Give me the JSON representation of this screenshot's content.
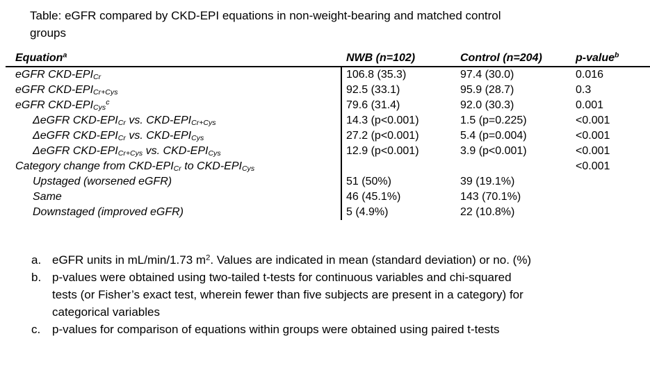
{
  "title": "Table: eGFR compared by CKD-EPI equations in non-weight-bearing and matched control groups",
  "table": {
    "columns": {
      "equation": [
        {
          "t": "Equation"
        },
        {
          "t": "a",
          "s": "sup"
        }
      ],
      "nwb": "NWB (n=102)",
      "control": "Control (n=204)",
      "p_value": [
        {
          "t": "p-value"
        },
        {
          "t": "b",
          "s": "sup"
        }
      ]
    },
    "rows": [
      {
        "equation": [
          {
            "t": "eGFR CKD-EPI"
          },
          {
            "t": "Cr",
            "s": "sub"
          }
        ],
        "nwb": "106.8 (35.3)",
        "control": "97.4 (30.0)",
        "p": "0.016"
      },
      {
        "equation": [
          {
            "t": "eGFR CKD-EPI"
          },
          {
            "t": "Cr+Cys",
            "s": "sub"
          }
        ],
        "nwb": "92.5 (33.1)",
        "control": "95.9 (28.7)",
        "p": "0.3"
      },
      {
        "equation": [
          {
            "t": "eGFR CKD-EPI"
          },
          {
            "t": "Cys",
            "s": "sub"
          },
          {
            "t": "c",
            "s": "sup"
          }
        ],
        "nwb": "79.6 (31.4)",
        "control": "92.0 (30.3)",
        "p": "0.001"
      },
      {
        "equation": [
          {
            "t": "ΔeGFR CKD-EPI"
          },
          {
            "t": "Cr",
            "s": "sub"
          },
          {
            "t": " vs. CKD-EPI"
          },
          {
            "t": "Cr+Cys",
            "s": "sub"
          }
        ],
        "nwb": "14.3 (p<0.001)",
        "control": "1.5 (p=0.225)",
        "p": "<0.001"
      },
      {
        "equation": [
          {
            "t": "ΔeGFR CKD-EPI"
          },
          {
            "t": "Cr",
            "s": "sub"
          },
          {
            "t": " vs. CKD-EPI"
          },
          {
            "t": "Cys",
            "s": "sub"
          }
        ],
        "nwb": "27.2 (p<0.001)",
        "control": "5.4 (p=0.004)",
        "p": "<0.001"
      },
      {
        "equation": [
          {
            "t": "ΔeGFR CKD-EPI"
          },
          {
            "t": "Cr+Cys",
            "s": "sub"
          },
          {
            "t": " vs. CKD-EPI"
          },
          {
            "t": "Cys",
            "s": "sub"
          }
        ],
        "nwb": "12.9 (p<0.001)",
        "control": "3.9 (p<0.001)",
        "p": "<0.001"
      },
      {
        "equation": [
          {
            "t": "Category change from CKD-EPI"
          },
          {
            "t": "Cr",
            "s": "sub"
          },
          {
            "t": " to CKD-EPI"
          },
          {
            "t": "Cys",
            "s": "sub"
          }
        ],
        "nwb": "",
        "control": "",
        "p": "<0.001"
      },
      {
        "equation": [
          {
            "t": "Upstaged (worsened eGFR)"
          }
        ],
        "nwb": "51 (50%)",
        "control": "39 (19.1%)",
        "p": ""
      },
      {
        "equation": [
          {
            "t": "Same"
          }
        ],
        "nwb": "46 (45.1%)",
        "control": "143 (70.1%)",
        "p": ""
      },
      {
        "equation": [
          {
            "t": "Downstaged (improved eGFR)"
          }
        ],
        "nwb": "5 (4.9%)",
        "control": "22 (10.8%)",
        "p": ""
      }
    ]
  },
  "footnotes": [
    {
      "marker": "a.",
      "text": [
        {
          "t": "eGFR units in mL/min/1.73 m"
        },
        {
          "t": "2",
          "s": "sup"
        },
        {
          "t": ".  Values are indicated in mean (standard deviation) or no. (%)"
        }
      ]
    },
    {
      "marker": "b.",
      "text": [
        {
          "t": "p-values were obtained using two-tailed t-tests for continuous variables and chi-squared tests (or Fisher’s exact test, wherein fewer than five subjects are present in a category) for categorical variables"
        }
      ]
    },
    {
      "marker": "c.",
      "text": [
        {
          "t": "p-values for comparison of equations within groups were obtained using paired t-tests"
        }
      ]
    }
  ]
}
